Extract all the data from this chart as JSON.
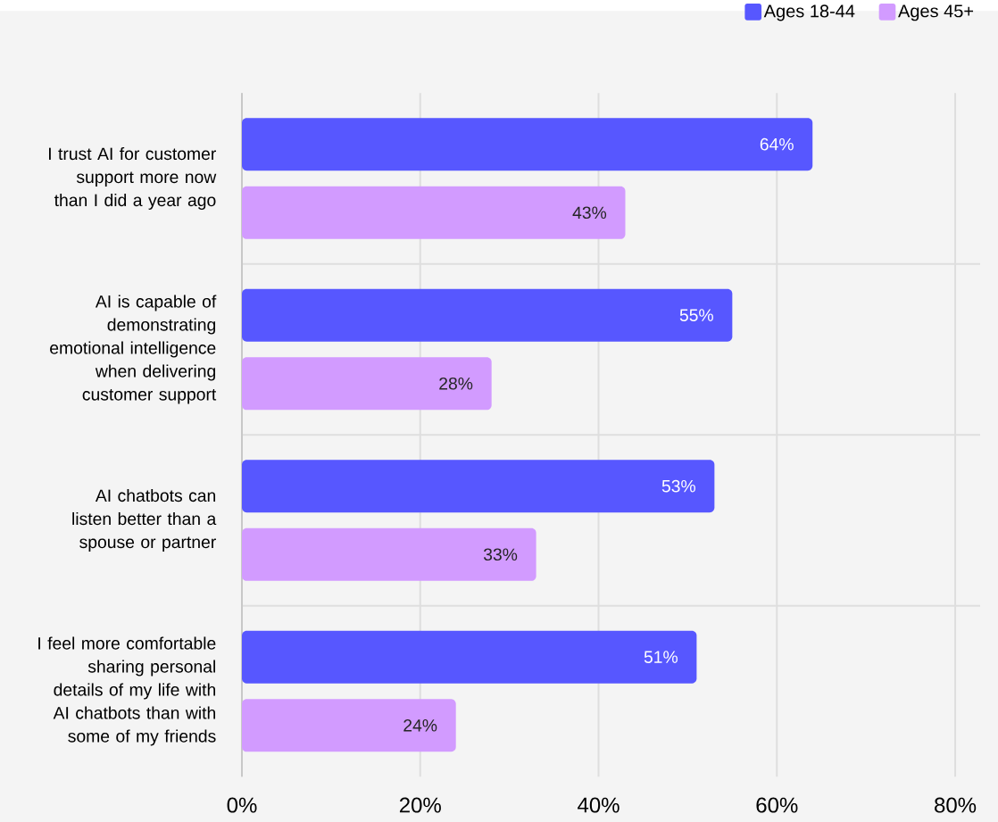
{
  "chart_data": {
    "type": "bar",
    "orientation": "horizontal",
    "categories": [
      "I trust AI for customer support more now than I did a year ago",
      "AI is capable of demonstrating emotional intelligence when delivering customer support",
      "AI chatbots can listen better than a spouse or partner",
      "I feel more comfortable sharing personal details of my life with AI chatbots than with some of my friends"
    ],
    "series": [
      {
        "name": "Ages 18-44",
        "color": "#5757ff",
        "values": [
          64,
          55,
          53,
          51
        ],
        "value_labels": [
          "64%",
          "55%",
          "53%",
          "51%"
        ]
      },
      {
        "name": "Ages 45+",
        "color": "#d29bff",
        "values": [
          43,
          28,
          33,
          24
        ],
        "value_labels": [
          "43%",
          "28%",
          "33%",
          "24%"
        ]
      }
    ],
    "xlim": [
      0,
      82.8
    ],
    "xticks": [
      {
        "value": 0,
        "label": "0%"
      },
      {
        "value": 20,
        "label": "20%"
      },
      {
        "value": 40,
        "label": "40%"
      },
      {
        "value": 60,
        "label": "60%"
      },
      {
        "value": 80,
        "label": "80%"
      }
    ],
    "grid": true,
    "legend": "top right"
  }
}
